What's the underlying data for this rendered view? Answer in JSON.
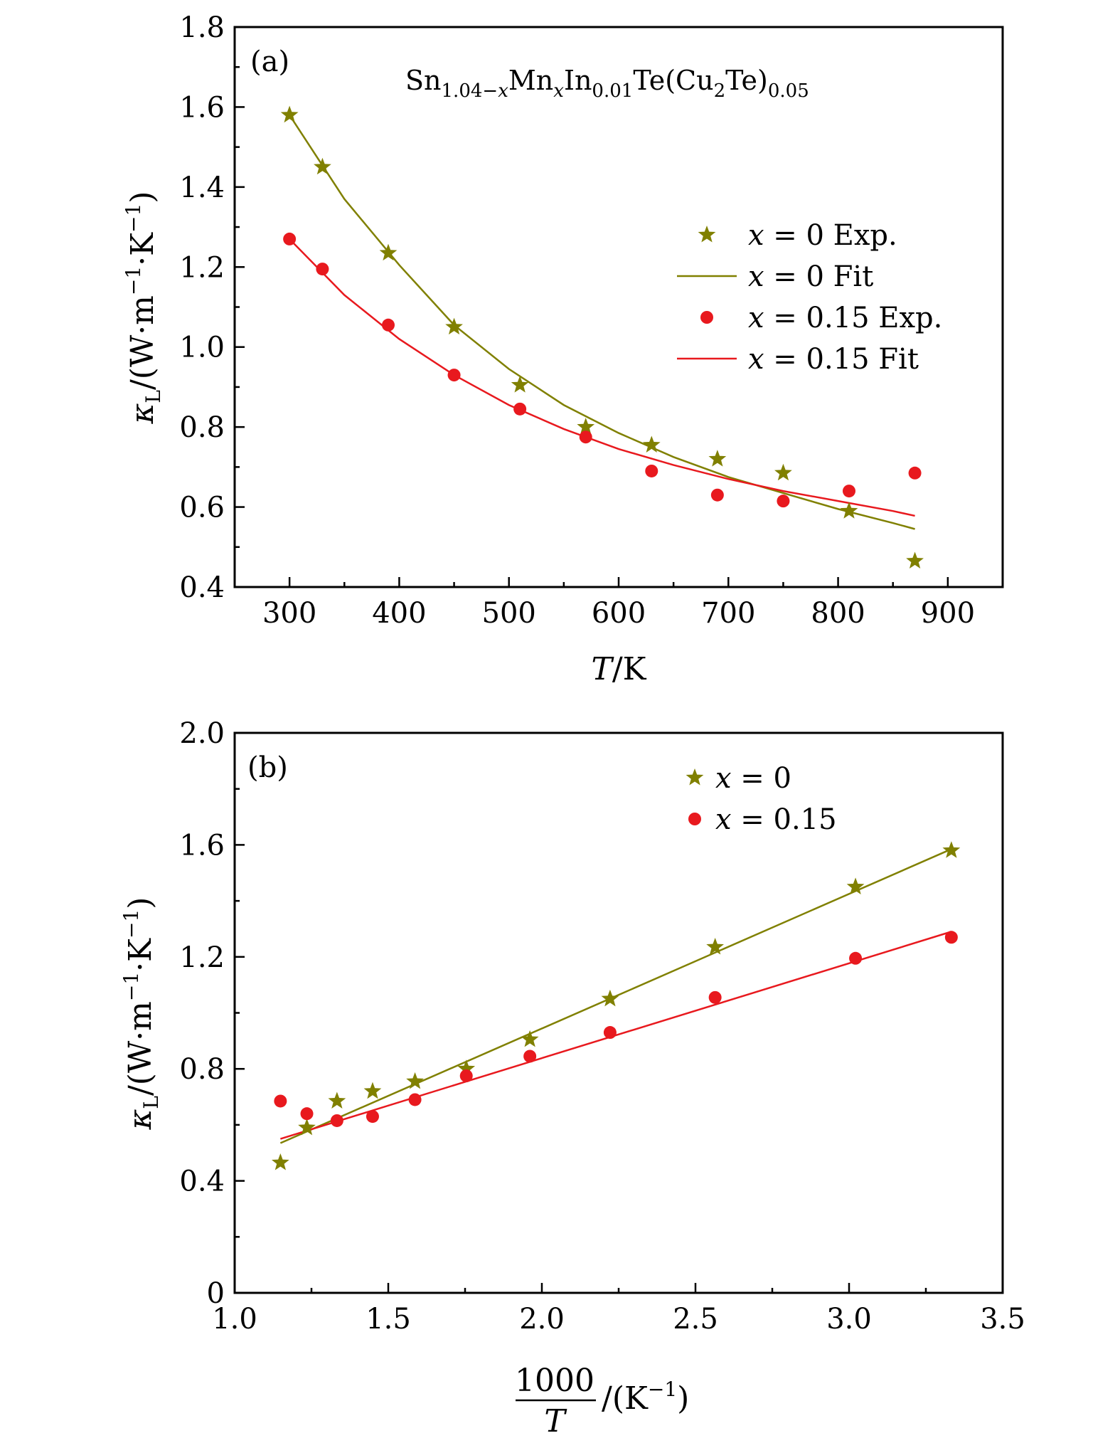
{
  "chart_data": [
    {
      "type": "scatter",
      "panel_label": "(a)",
      "annotation": "Sn1.04−xMnxIn0.01Te(Cu2Te)0.05",
      "xlabel": "T/K",
      "ylabel": "κL/(W·m−1·K−1)",
      "xlim": [
        250,
        950
      ],
      "ylim": [
        0.4,
        1.8
      ],
      "x_ticks": [
        "300",
        "400",
        "500",
        "600",
        "700",
        "800",
        "900"
      ],
      "y_ticks": [
        "0.4",
        "0.6",
        "0.8",
        "1.0",
        "1.2",
        "1.4",
        "1.6",
        "1.8"
      ],
      "legend_position": "right",
      "legend": [
        "x = 0 Exp.",
        "x = 0 Fit",
        "x = 0.15 Exp.",
        "x = 0.15 Fit"
      ],
      "series": [
        {
          "name": "x = 0 Exp.",
          "marker": "star",
          "color": "#808000",
          "x": [
            300,
            330,
            390,
            450,
            510,
            570,
            630,
            690,
            750,
            810,
            870
          ],
          "y": [
            1.58,
            1.45,
            1.235,
            1.05,
            0.905,
            0.8,
            0.755,
            0.72,
            0.685,
            0.59,
            0.465
          ]
        },
        {
          "name": "x = 0.15 Exp.",
          "marker": "circle",
          "color": "#e8191e",
          "x": [
            300,
            330,
            390,
            450,
            510,
            570,
            630,
            690,
            750,
            810,
            870
          ],
          "y": [
            1.27,
            1.195,
            1.055,
            0.93,
            0.845,
            0.775,
            0.69,
            0.63,
            0.615,
            0.64,
            0.685
          ]
        },
        {
          "name": "x = 0 Fit",
          "type": "line",
          "color": "#808000",
          "x": [
            300,
            350,
            400,
            450,
            500,
            550,
            600,
            650,
            700,
            750,
            800,
            850,
            870
          ],
          "y": [
            1.58,
            1.37,
            1.205,
            1.055,
            0.945,
            0.855,
            0.785,
            0.725,
            0.675,
            0.635,
            0.595,
            0.56,
            0.545
          ]
        },
        {
          "name": "x = 0.15 Fit",
          "type": "line",
          "color": "#e8191e",
          "x": [
            300,
            350,
            400,
            450,
            500,
            550,
            600,
            650,
            700,
            750,
            800,
            850,
            870
          ],
          "y": [
            1.27,
            1.13,
            1.02,
            0.93,
            0.855,
            0.795,
            0.745,
            0.705,
            0.67,
            0.64,
            0.615,
            0.59,
            0.578
          ]
        }
      ]
    },
    {
      "type": "scatter",
      "panel_label": "(b)",
      "xlabel": "1000/T /(K−1)",
      "ylabel": "κL/(W·m−1·K−1)",
      "xlim": [
        1.0,
        3.5
      ],
      "ylim": [
        0,
        2.0
      ],
      "x_ticks": [
        "1.0",
        "1.5",
        "2.0",
        "2.5",
        "3.0",
        "3.5"
      ],
      "y_ticks": [
        "0",
        "0.4",
        "0.8",
        "1.2",
        "1.6",
        "2.0"
      ],
      "legend_position": "top-right",
      "legend": [
        "x = 0",
        "x = 0.15"
      ],
      "series": [
        {
          "name": "x = 0",
          "marker": "star",
          "color": "#808000",
          "x": [
            1.149,
            1.235,
            1.333,
            1.449,
            1.587,
            1.754,
            1.961,
            2.222,
            2.564,
            3.021,
            3.333
          ],
          "y": [
            0.465,
            0.59,
            0.685,
            0.72,
            0.755,
            0.8,
            0.905,
            1.05,
            1.235,
            1.45,
            1.58
          ]
        },
        {
          "name": "x = 0.15",
          "marker": "circle",
          "color": "#e8191e",
          "x": [
            1.149,
            1.235,
            1.333,
            1.449,
            1.587,
            1.754,
            1.961,
            2.222,
            2.564,
            3.021,
            3.333
          ],
          "y": [
            0.685,
            0.64,
            0.615,
            0.63,
            0.69,
            0.775,
            0.845,
            0.93,
            1.055,
            1.195,
            1.27
          ]
        },
        {
          "type": "line",
          "color": "#808000",
          "x": [
            1.149,
            3.333
          ],
          "y": [
            0.535,
            1.585
          ]
        },
        {
          "type": "line",
          "color": "#e8191e",
          "x": [
            1.149,
            3.333
          ],
          "y": [
            0.55,
            1.29
          ]
        }
      ]
    }
  ]
}
